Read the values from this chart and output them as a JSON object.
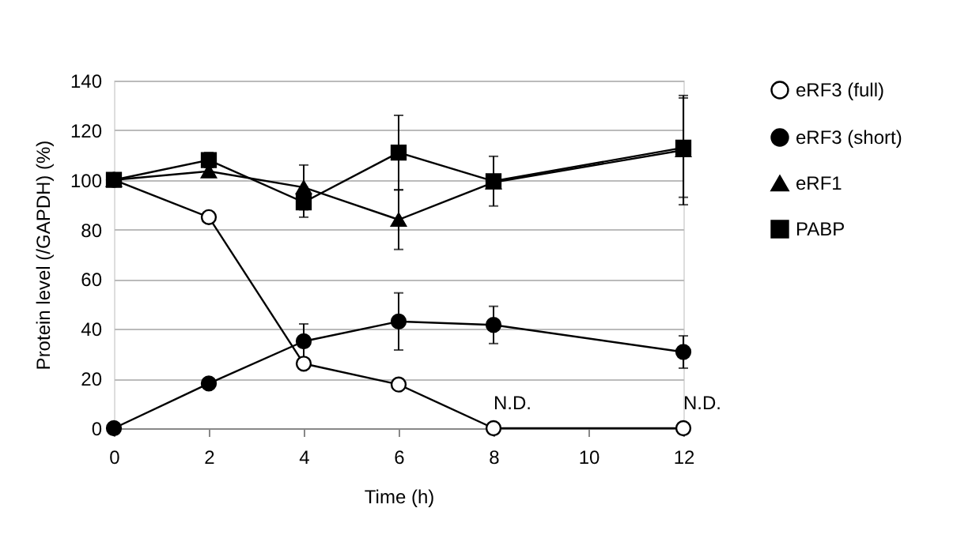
{
  "chart_data": {
    "type": "line",
    "xlabel": "Time (h)",
    "ylabel": "Protein level (/GAPDH) (%)",
    "x": [
      0,
      2,
      4,
      6,
      8,
      12
    ],
    "series": [
      {
        "name": "eRF3 (full)",
        "color": "#ffffff",
        "marker": "circle",
        "values": [
          100,
          85,
          26,
          17.6,
          0,
          0
        ]
      },
      {
        "name": "eRF3 (short)",
        "color": "#000000",
        "marker": "circle",
        "values": [
          0,
          18,
          35,
          43,
          41.6,
          30.7
        ],
        "errors": [
          null,
          null,
          7,
          11.5,
          7.5,
          6.5
        ]
      },
      {
        "name": "eRF1",
        "color": "#000000",
        "marker": "triangle",
        "values": [
          100,
          103.5,
          97,
          84,
          99,
          112
        ],
        "errors": [
          null,
          2,
          9,
          12,
          null,
          22
        ]
      },
      {
        "name": "PABP",
        "color": "#000000",
        "marker": "square",
        "values": [
          100,
          108,
          91,
          111,
          99.5,
          113
        ],
        "errors": [
          null,
          3,
          6,
          15,
          10,
          20
        ]
      }
    ],
    "xlim": [
      0,
      12
    ],
    "xticks": [
      0,
      2,
      4,
      6,
      8,
      10,
      12
    ],
    "ylim": [
      0,
      140
    ],
    "yticks": [
      0,
      20,
      40,
      60,
      80,
      100,
      120,
      140
    ],
    "grid": "y",
    "legend": "right",
    "annotations": [
      {
        "text": "N.D.",
        "x": 8,
        "y": 0
      },
      {
        "text": "N.D.",
        "x": 12,
        "y": 0
      }
    ]
  }
}
